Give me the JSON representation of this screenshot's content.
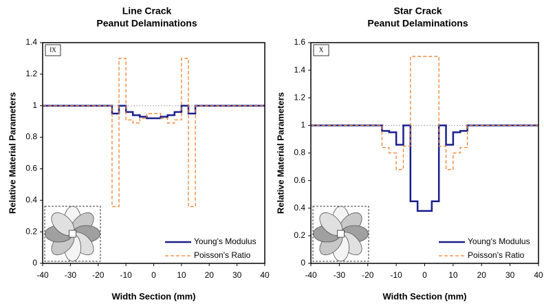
{
  "chart_data": [
    {
      "type": "line",
      "title": "Line Crack",
      "subtitle": "Peanut Delaminations",
      "panel_label": "IX",
      "xlabel": "Width Section (mm)",
      "ylabel": "Relative Material Parameters",
      "xlim": [
        -40,
        40
      ],
      "xticks": [
        -40,
        -30,
        -20,
        -10,
        0,
        10,
        20,
        30,
        40
      ],
      "ylim": [
        0,
        1.4
      ],
      "yticks": [
        0,
        0.2,
        0.4,
        0.6,
        0.8,
        1,
        1.2,
        1.4
      ],
      "hline": 1,
      "series": [
        {
          "name": "Young's Modulus",
          "color": "#1a1f8c",
          "x": [
            -40,
            -15,
            -15,
            -12.5,
            -12.5,
            -10,
            -10,
            -7.5,
            -7.5,
            -5,
            -5,
            -2.5,
            -2.5,
            2.5,
            2.5,
            5,
            5,
            7.5,
            7.5,
            10,
            10,
            12.5,
            12.5,
            15,
            15,
            40
          ],
          "values": [
            1,
            1,
            0.95,
            0.95,
            1,
            1,
            0.96,
            0.96,
            0.94,
            0.94,
            0.93,
            0.93,
            0.92,
            0.92,
            0.93,
            0.93,
            0.94,
            0.94,
            0.96,
            0.96,
            1,
            1,
            0.95,
            0.95,
            1,
            1
          ]
        },
        {
          "name": "Poisson's Ratio",
          "color": "#f08030",
          "x": [
            -40,
            -15,
            -15,
            -12.5,
            -12.5,
            -10,
            -10,
            -7.5,
            -7.5,
            -5,
            -5,
            -2.5,
            -2.5,
            2.5,
            2.5,
            5,
            5,
            7.5,
            7.5,
            10,
            10,
            12.5,
            12.5,
            15,
            15,
            40
          ],
          "values": [
            1,
            1,
            0.36,
            0.36,
            1.3,
            1.3,
            0.91,
            0.91,
            0.89,
            0.89,
            0.92,
            0.92,
            0.95,
            0.95,
            0.92,
            0.92,
            0.89,
            0.89,
            0.91,
            0.91,
            1.3,
            1.3,
            0.36,
            0.36,
            1,
            1
          ]
        }
      ]
    },
    {
      "type": "line",
      "title": "Star Crack",
      "subtitle": "Peanut Delaminations",
      "panel_label": "X",
      "xlabel": "Width Section (mm)",
      "ylabel": "Relative Material Parameters",
      "xlim": [
        -40,
        40
      ],
      "xticks": [
        -40,
        -30,
        -20,
        -10,
        0,
        10,
        20,
        30,
        40
      ],
      "ylim": [
        0,
        1.6
      ],
      "yticks": [
        0,
        0.2,
        0.4,
        0.6,
        0.8,
        1,
        1.2,
        1.4,
        1.6
      ],
      "hline": 1,
      "series": [
        {
          "name": "Young's Modulus",
          "color": "#1a1f8c",
          "x": [
            -40,
            -15,
            -15,
            -12.5,
            -12.5,
            -10,
            -10,
            -7.5,
            -7.5,
            -5,
            -5,
            -2.5,
            -2.5,
            2.5,
            2.5,
            5,
            5,
            7.5,
            7.5,
            10,
            10,
            12.5,
            12.5,
            15,
            15,
            40
          ],
          "values": [
            1,
            1,
            0.96,
            0.96,
            0.95,
            0.95,
            0.86,
            0.86,
            1,
            1,
            0.45,
            0.45,
            0.38,
            0.38,
            0.45,
            0.45,
            1,
            1,
            0.86,
            0.86,
            0.95,
            0.95,
            0.96,
            0.96,
            1,
            1
          ]
        },
        {
          "name": "Poisson's Ratio",
          "color": "#f08030",
          "x": [
            -40,
            -15,
            -15,
            -12.5,
            -12.5,
            -10,
            -10,
            -7.5,
            -7.5,
            -5,
            -5,
            5,
            5,
            7.5,
            7.5,
            10,
            10,
            12.5,
            12.5,
            15,
            15,
            40
          ],
          "values": [
            1,
            1,
            0.84,
            0.84,
            0.8,
            0.8,
            0.68,
            0.68,
            0.85,
            0.85,
            1.5,
            1.5,
            0.85,
            0.85,
            0.68,
            0.68,
            0.8,
            0.8,
            0.84,
            0.84,
            1,
            1
          ]
        }
      ]
    }
  ]
}
